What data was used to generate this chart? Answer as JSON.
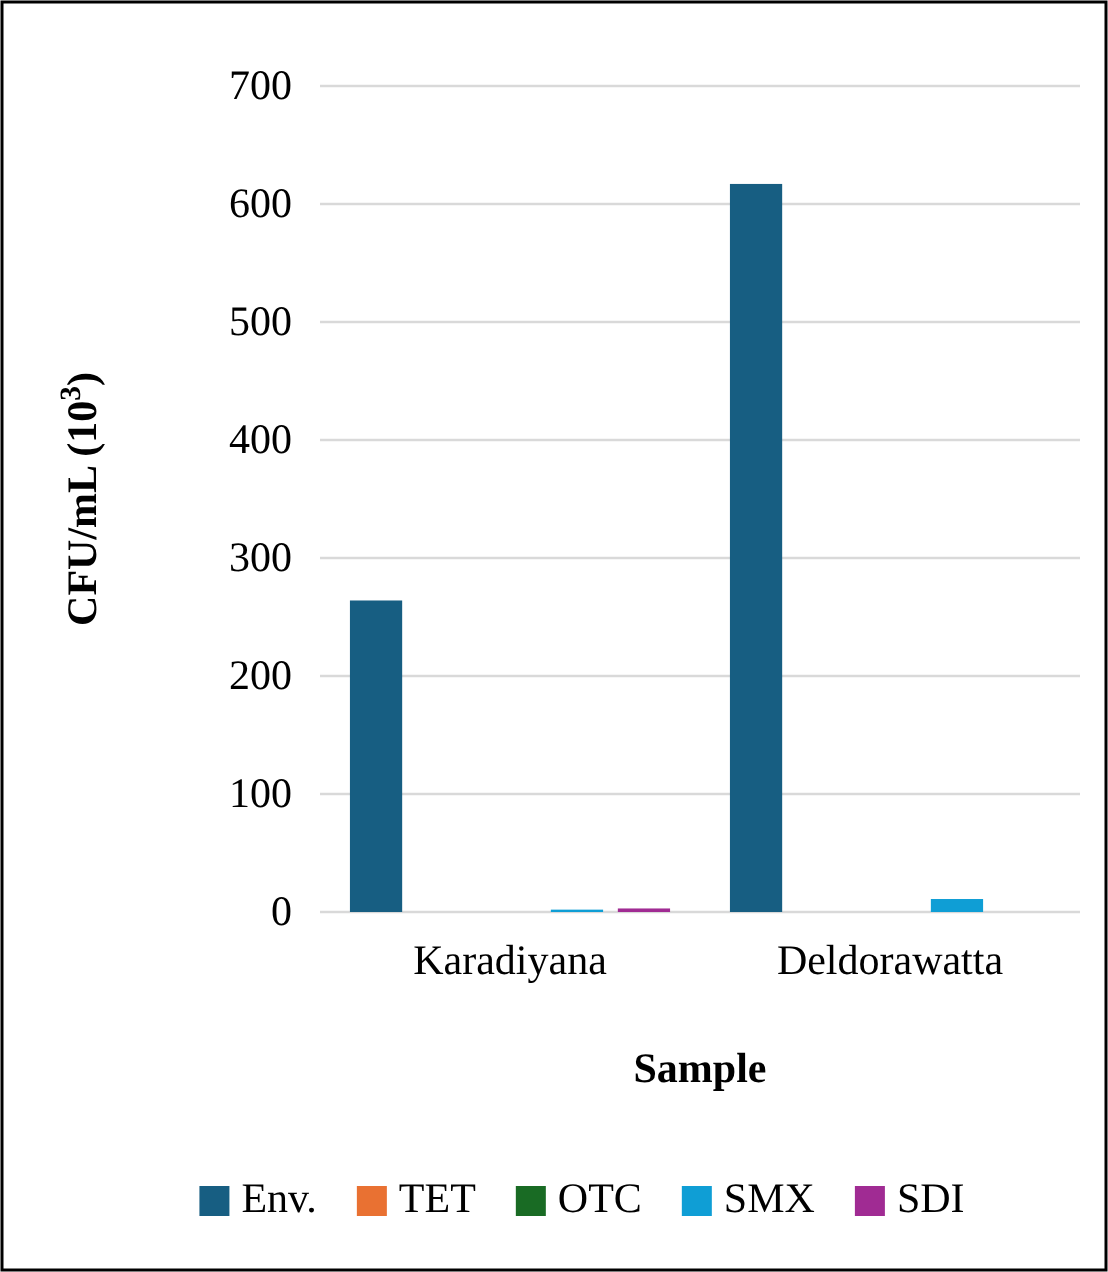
{
  "chart_data": {
    "type": "bar",
    "xlabel": "Sample",
    "ylabel": "CFU/mL (10$^{3}$)",
    "categories": [
      "Karadiyana",
      "Deldorawatta"
    ],
    "series": [
      {
        "name": "Env.",
        "color": "#175e82",
        "values": [
          264,
          617
        ]
      },
      {
        "name": "TET",
        "color": "#e97132",
        "values": [
          0,
          0
        ]
      },
      {
        "name": "OTC",
        "color": "#196b24",
        "values": [
          0,
          0
        ]
      },
      {
        "name": "SMX",
        "color": "#0f9ed5",
        "values": [
          2,
          11
        ]
      },
      {
        "name": "SDI",
        "color": "#a02b93",
        "values": [
          3,
          0
        ]
      }
    ],
    "ylim": [
      0,
      700
    ],
    "yticks": [
      0,
      100,
      200,
      300,
      400,
      500,
      600,
      700
    ],
    "grid": "y",
    "legend": "bottom"
  }
}
